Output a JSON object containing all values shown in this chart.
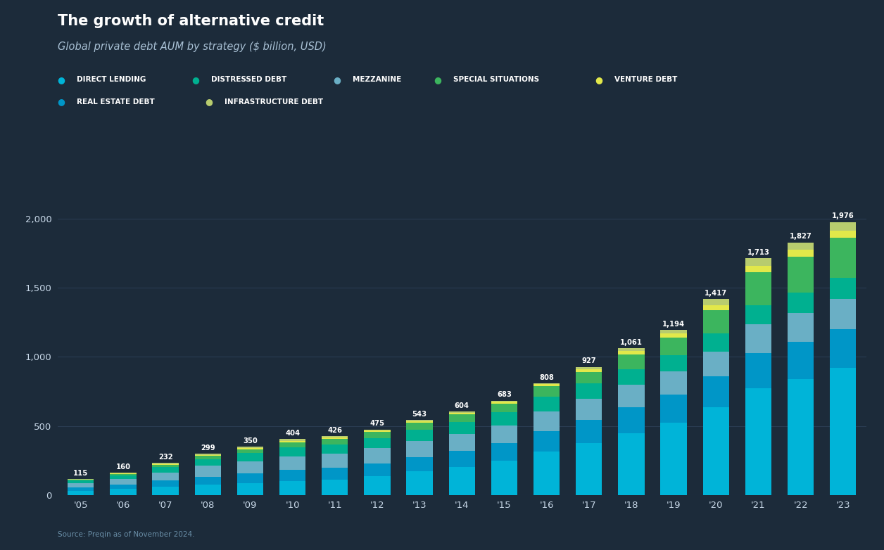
{
  "title": "The growth of alternative credit",
  "subtitle": "Global private debt AUM by strategy ($ billion, USD)",
  "source": "Source: Preqin as of November 2024.",
  "background_color": "#1c2b3a",
  "grid_color": "#2a3d52",
  "years": [
    "'05",
    "'06",
    "'07",
    "'08",
    "'09",
    "'10",
    "'11",
    "'12",
    "'13",
    "'14",
    "'15",
    "'16",
    "'17",
    "'18",
    "'19",
    "'20",
    "'21",
    "'22",
    "'23"
  ],
  "totals": [
    115,
    160,
    232,
    299,
    350,
    404,
    426,
    475,
    543,
    604,
    683,
    808,
    927,
    1061,
    1194,
    1417,
    1713,
    1827,
    1976
  ],
  "series_order": [
    "Direct Lending",
    "Real Estate Debt",
    "Mezzanine",
    "Distressed Debt",
    "Special Situations",
    "Venture Debt",
    "Infrastructure Debt"
  ],
  "series": {
    "Direct Lending": [
      32,
      44,
      60,
      75,
      88,
      102,
      112,
      135,
      170,
      205,
      250,
      315,
      375,
      445,
      525,
      635,
      775,
      840,
      920
    ],
    "Real Estate Debt": [
      22,
      30,
      44,
      58,
      68,
      78,
      84,
      95,
      105,
      115,
      125,
      148,
      168,
      188,
      200,
      222,
      252,
      268,
      282
    ],
    "Mezzanine": [
      32,
      44,
      60,
      78,
      88,
      98,
      102,
      108,
      118,
      122,
      128,
      143,
      153,
      163,
      168,
      182,
      208,
      212,
      216
    ],
    "Distressed Debt": [
      18,
      25,
      40,
      50,
      58,
      66,
      68,
      74,
      80,
      86,
      96,
      106,
      110,
      115,
      120,
      130,
      140,
      145,
      155
    ],
    "Special Situations": [
      6,
      10,
      14,
      22,
      30,
      38,
      40,
      44,
      50,
      56,
      64,
      74,
      84,
      106,
      126,
      170,
      238,
      262,
      288
    ],
    "Venture Debt": [
      2,
      3,
      4,
      6,
      8,
      10,
      10,
      10,
      12,
      12,
      14,
      17,
      21,
      25,
      29,
      36,
      46,
      50,
      54
    ],
    "Infrastructure Debt": [
      3,
      4,
      10,
      10,
      10,
      12,
      10,
      9,
      8,
      8,
      6,
      5,
      16,
      19,
      26,
      42,
      54,
      50,
      61
    ]
  },
  "colors": {
    "Direct Lending": "#00b4d8",
    "Real Estate Debt": "#0096c7",
    "Mezzanine": "#6aafc5",
    "Distressed Debt": "#00b090",
    "Special Situations": "#3cb55e",
    "Venture Debt": "#e2e84a",
    "Infrastructure Debt": "#b8cc6e"
  },
  "legend_row1": [
    "DIRECT LENDING",
    "DISTRESSED DEBT",
    "MEZZANINE",
    "SPECIAL SITUATIONS",
    "VENTURE DEBT"
  ],
  "legend_row2": [
    "REAL ESTATE DEBT",
    "INFRASTRUCTURE DEBT"
  ],
  "legend_colors": {
    "DIRECT LENDING": "#00b4d8",
    "DISTRESSED DEBT": "#00b090",
    "MEZZANINE": "#6aafc5",
    "SPECIAL SITUATIONS": "#3cb55e",
    "VENTURE DEBT": "#e2e84a",
    "REAL ESTATE DEBT": "#0096c7",
    "INFRASTRUCTURE DEBT": "#b8cc6e"
  },
  "ylim": [
    0,
    2150
  ],
  "yticks": [
    0,
    500,
    1000,
    1500,
    2000
  ]
}
